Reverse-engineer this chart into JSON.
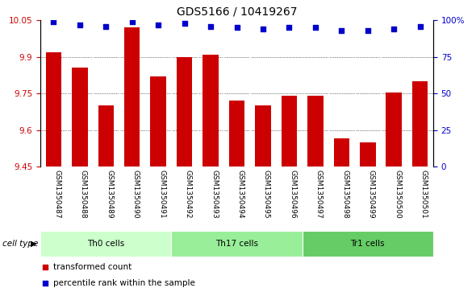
{
  "title": "GDS5166 / 10419267",
  "samples": [
    "GSM1350487",
    "GSM1350488",
    "GSM1350489",
    "GSM1350490",
    "GSM1350491",
    "GSM1350492",
    "GSM1350493",
    "GSM1350494",
    "GSM1350495",
    "GSM1350496",
    "GSM1350497",
    "GSM1350498",
    "GSM1350499",
    "GSM1350500",
    "GSM1350501"
  ],
  "red_values": [
    9.92,
    9.855,
    9.7,
    10.02,
    9.82,
    9.9,
    9.91,
    9.72,
    9.7,
    9.74,
    9.74,
    9.565,
    9.55,
    9.755,
    9.8
  ],
  "blue_values": [
    99,
    97,
    96,
    99,
    97,
    98,
    96,
    95,
    94,
    95,
    95,
    93,
    93,
    94,
    96
  ],
  "ylim_left": [
    9.45,
    10.05
  ],
  "ylim_right": [
    0,
    100
  ],
  "yticks_left": [
    9.45,
    9.6,
    9.75,
    9.9,
    10.05
  ],
  "yticks_right": [
    0,
    25,
    50,
    75,
    100
  ],
  "cell_groups": [
    {
      "label": "Th0 cells",
      "start": 0,
      "end": 5,
      "color": "#ccffcc"
    },
    {
      "label": "Th17 cells",
      "start": 5,
      "end": 10,
      "color": "#99ee99"
    },
    {
      "label": "Tr1 cells",
      "start": 10,
      "end": 15,
      "color": "#66cc66"
    }
  ],
  "bar_color": "#cc0000",
  "dot_color": "#0000cc",
  "tick_bg": "#c8c8c8",
  "cell_type_label": "cell type",
  "legend_red": "transformed count",
  "legend_blue": "percentile rank within the sample",
  "title_fontsize": 10,
  "tick_fontsize": 6.5,
  "legend_fontsize": 7.5
}
